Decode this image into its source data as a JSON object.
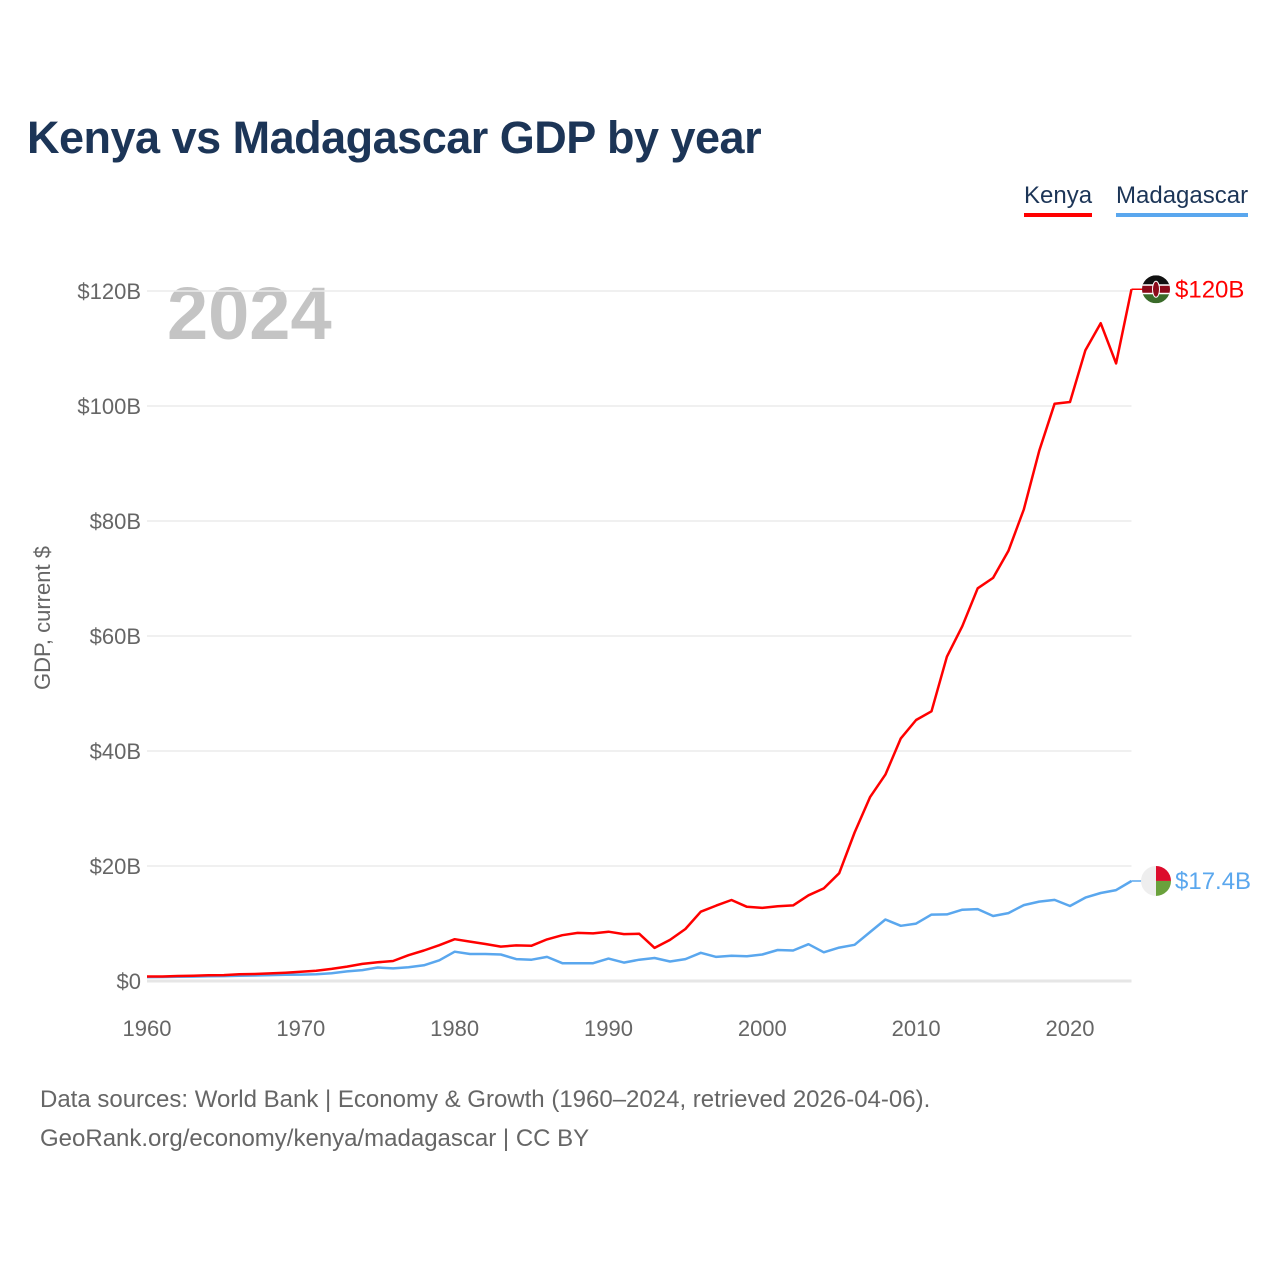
{
  "chart_data": {
    "type": "line",
    "title": "Kenya vs Madagascar GDP by year",
    "xlabel": "",
    "ylabel": "GDP, current $",
    "year_label": "2024",
    "xlim": [
      1960,
      2024
    ],
    "ylim": [
      0,
      120
    ],
    "x_ticks": [
      1960,
      1970,
      1980,
      1990,
      2000,
      2010,
      2020
    ],
    "y_ticks": [
      0,
      20,
      40,
      60,
      80,
      100,
      120
    ],
    "y_tick_labels": [
      "$0",
      "$20B",
      "$40B",
      "$60B",
      "$80B",
      "$100B",
      "$120B"
    ],
    "grid": true,
    "legend_position": "top-right",
    "x_start": 1960,
    "series": [
      {
        "name": "Kenya",
        "color": "#ff0000",
        "end_label": "$120B",
        "values": [
          0.79,
          0.79,
          0.87,
          0.93,
          0.99,
          1.02,
          1.17,
          1.22,
          1.33,
          1.44,
          1.6,
          1.78,
          2.11,
          2.5,
          2.97,
          3.26,
          3.47,
          4.49,
          5.3,
          6.23,
          7.27,
          6.85,
          6.43,
          5.98,
          6.19,
          6.14,
          7.24,
          7.97,
          8.36,
          8.28,
          8.57,
          8.15,
          8.21,
          5.75,
          7.15,
          9.05,
          12.05,
          13.12,
          14.09,
          12.9,
          12.71,
          12.99,
          13.15,
          14.9,
          16.1,
          18.74,
          25.83,
          31.96,
          35.9,
          42.2,
          45.4,
          46.9,
          56.4,
          61.7,
          68.3,
          70.1,
          74.8,
          82.0,
          92.2,
          100.4,
          100.7,
          109.7,
          114.4,
          107.4,
          120.3
        ]
      },
      {
        "name": "Madagascar",
        "color": "#5aa7ee",
        "end_label": "$17.4B",
        "values": [
          0.67,
          0.7,
          0.74,
          0.77,
          0.82,
          0.85,
          0.9,
          0.95,
          1.03,
          1.08,
          1.11,
          1.19,
          1.36,
          1.67,
          1.9,
          2.34,
          2.2,
          2.38,
          2.73,
          3.6,
          5.1,
          4.7,
          4.7,
          4.6,
          3.8,
          3.7,
          4.2,
          3.1,
          3.1,
          3.1,
          3.9,
          3.2,
          3.7,
          4.0,
          3.4,
          3.8,
          4.9,
          4.2,
          4.4,
          4.3,
          4.6,
          5.4,
          5.3,
          6.4,
          5.0,
          5.8,
          6.3,
          8.5,
          10.7,
          9.6,
          9.98,
          11.55,
          11.58,
          12.4,
          12.5,
          11.3,
          11.8,
          13.2,
          13.8,
          14.1,
          13.05,
          14.5,
          15.3,
          15.8,
          17.4
        ]
      }
    ]
  },
  "footer": {
    "line1": "Data sources: World Bank | Economy & Growth (1960–2024, retrieved 2026-04-06).",
    "line2": "GeoRank.org/economy/kenya/madagascar | CC BY"
  }
}
